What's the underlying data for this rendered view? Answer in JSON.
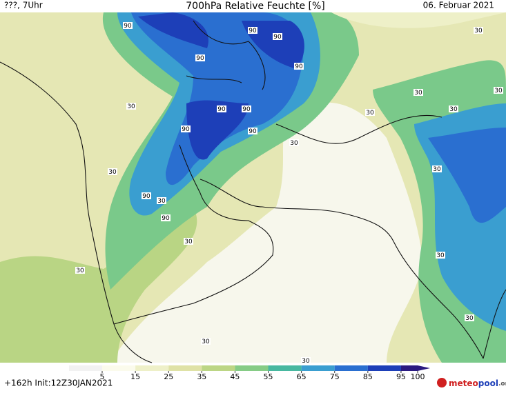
{
  "header": {
    "run": "???, 7Uhr",
    "title": "700hPa Relative Feuchte [%]",
    "date": "06. Februar 2021"
  },
  "contour_labels": [
    "90",
    "90",
    "90",
    "90",
    "90",
    "90",
    "90",
    "90",
    "90",
    "90",
    "90",
    "30",
    "30",
    "30",
    "30",
    "30",
    "30",
    "30",
    "30",
    "30",
    "30",
    "30",
    "30",
    "30",
    "30",
    "30",
    "30"
  ],
  "colorbar": {
    "ticks": [
      5,
      15,
      25,
      35,
      45,
      55,
      65,
      75,
      85,
      95,
      100
    ],
    "colors": [
      "#fbfbec",
      "#eef0c8",
      "#dfe2a6",
      "#bcd685",
      "#86cc86",
      "#48b8a0",
      "#3a9ed0",
      "#2a6fd0",
      "#1d3fb8",
      "#2a1a80"
    ]
  },
  "footer": {
    "init": "+162h Init:12Z30JAN2021",
    "logo": [
      "meteo",
      "pool",
      ".org"
    ]
  }
}
